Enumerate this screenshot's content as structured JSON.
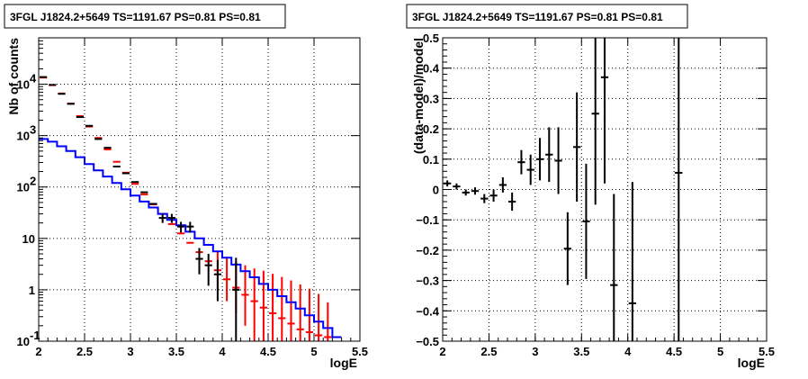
{
  "chart_data": [
    {
      "type": "histogram",
      "title": "3FGL J1824.2+5649 TS=1191.67 PS=0.81 PS=0.81",
      "xlabel": "logE",
      "ylabel": "Nb of counts",
      "xlim": [
        2,
        5.5
      ],
      "ylim": [
        0.1,
        80000
      ],
      "y_scale": "log",
      "grid": true,
      "x_ticks": [
        {
          "v": 2,
          "label": "2"
        },
        {
          "v": 2.5,
          "label": "2.5"
        },
        {
          "v": 3,
          "label": "3"
        },
        {
          "v": 3.5,
          "label": "3.5"
        },
        {
          "v": 4,
          "label": "4"
        },
        {
          "v": 4.5,
          "label": "4.5"
        },
        {
          "v": 5,
          "label": "5"
        },
        {
          "v": 5.5,
          "label": "5.5"
        }
      ],
      "y_ticks": [
        {
          "v": 0.1,
          "base": "10",
          "exp": "-1"
        },
        {
          "v": 1,
          "base": "1",
          "exp": ""
        },
        {
          "v": 10,
          "base": "10",
          "exp": ""
        },
        {
          "v": 100,
          "base": "10",
          "exp": "2"
        },
        {
          "v": 1000,
          "base": "10",
          "exp": "3"
        },
        {
          "v": 10000,
          "base": "10",
          "exp": "4"
        }
      ],
      "colors": {
        "data": "#000000",
        "model_total": "#ff0000",
        "model_source": "#0000ff"
      },
      "bin_width": 0.1,
      "series": [
        {
          "key": "model_total",
          "x": [
            2.05,
            2.15,
            2.25,
            2.35,
            2.45,
            2.55,
            2.65,
            2.75,
            2.85,
            2.95,
            3.05,
            3.15,
            3.25,
            3.35,
            3.45,
            3.55,
            3.65,
            3.75,
            3.85,
            3.95,
            4.05,
            4.15,
            4.25,
            4.35,
            4.45,
            4.55,
            4.65,
            4.75,
            4.85,
            4.95,
            5.05,
            5.15
          ],
          "y": [
            13500,
            9600,
            6600,
            4200,
            2400,
            1500,
            900,
            540,
            310,
            190,
            115,
            72,
            46,
            30,
            19,
            12.5,
            8.2,
            5.4,
            3.6,
            2.4,
            1.6,
            1.1,
            0.8,
            0.6,
            0.45,
            0.35,
            0.28,
            0.22,
            0.17,
            0.15,
            0.13,
            0.12
          ],
          "err_lo": [
            0,
            0,
            0,
            0,
            0,
            0,
            0,
            0,
            0,
            0,
            0,
            0,
            0,
            0,
            0,
            0,
            0,
            0,
            0,
            1.4,
            1.0,
            0.75,
            0.6,
            0.5,
            0.4,
            0.32,
            0.26,
            0.21,
            0.17,
            0.15,
            0.13,
            0.12
          ],
          "err_hi": [
            0,
            0,
            0,
            0,
            0,
            0,
            0,
            0,
            0,
            0,
            0,
            0,
            0,
            0,
            0,
            0,
            0,
            0,
            0,
            3.2,
            2.8,
            2.4,
            2.2,
            2.0,
            1.9,
            1.7,
            1.5,
            1.3,
            1.1,
            0.9,
            0.7,
            0.45
          ]
        },
        {
          "key": "model_source",
          "edges": [
            2.0,
            2.1,
            2.2,
            2.3,
            2.4,
            2.5,
            2.6,
            2.7,
            2.8,
            2.9,
            3.0,
            3.1,
            3.2,
            3.3,
            3.4,
            3.5,
            3.6,
            3.7,
            3.8,
            3.9,
            4.0,
            4.1,
            4.2,
            4.3,
            4.4,
            4.5,
            4.6,
            4.7,
            4.8,
            4.9,
            5.0,
            5.1,
            5.2,
            5.3
          ],
          "y": [
            860,
            760,
            620,
            500,
            380,
            280,
            210,
            160,
            120,
            90,
            68,
            52,
            40,
            30,
            23,
            18,
            13.5,
            10,
            7.5,
            5.6,
            4.2,
            3.1,
            2.3,
            1.75,
            1.3,
            1.0,
            0.75,
            0.57,
            0.43,
            0.32,
            0.24,
            0.18,
            0.12
          ]
        },
        {
          "key": "data",
          "x": [
            2.05,
            2.15,
            2.25,
            2.35,
            2.45,
            2.55,
            2.65,
            2.75,
            2.85,
            2.95,
            3.05,
            3.15,
            3.25,
            3.35,
            3.45,
            3.55,
            3.65,
            3.75,
            3.85,
            3.95,
            4.15
          ],
          "y": [
            13800,
            9700,
            6500,
            4150,
            2300,
            1550,
            860,
            580,
            250,
            185,
            125,
            79,
            47,
            25,
            25,
            17,
            17,
            4,
            3,
            2,
            1
          ],
          "err_lo": [
            0,
            0,
            0,
            0,
            0,
            0,
            0,
            0,
            0,
            0,
            0,
            0,
            0,
            5,
            5,
            4,
            4,
            2,
            1.8,
            1.4,
            0.9
          ],
          "err_hi": [
            0,
            0,
            0,
            0,
            0,
            0,
            0,
            0,
            0,
            0,
            0,
            0,
            0,
            5,
            5,
            4,
            4,
            2.5,
            2,
            1.8,
            3.2
          ]
        }
      ]
    },
    {
      "type": "scatter",
      "title": "3FGL J1824.2+5649 TS=1191.67 PS=0.81 PS=0.81",
      "xlabel": "logE",
      "ylabel": "(data-model)/model",
      "xlim": [
        2,
        5.5
      ],
      "ylim": [
        -0.5,
        0.5
      ],
      "grid": true,
      "x_ticks": [
        {
          "v": 2,
          "label": "2"
        },
        {
          "v": 2.5,
          "label": "2.5"
        },
        {
          "v": 3,
          "label": "3"
        },
        {
          "v": 3.5,
          "label": "3.5"
        },
        {
          "v": 4,
          "label": "4"
        },
        {
          "v": 4.5,
          "label": "4.5"
        },
        {
          "v": 5,
          "label": "5"
        },
        {
          "v": 5.5,
          "label": "5.5"
        }
      ],
      "y_ticks": [
        {
          "v": -0.5,
          "label": "−0.5"
        },
        {
          "v": -0.4,
          "label": "−0.4"
        },
        {
          "v": -0.3,
          "label": "−0.3"
        },
        {
          "v": -0.2,
          "label": "−0.2"
        },
        {
          "v": -0.1,
          "label": "−0.1"
        },
        {
          "v": 0,
          "label": "0"
        },
        {
          "v": 0.1,
          "label": "0.1"
        },
        {
          "v": 0.2,
          "label": "0.2"
        },
        {
          "v": 0.3,
          "label": "0.3"
        },
        {
          "v": 0.4,
          "label": "0.4"
        },
        {
          "v": 0.5,
          "label": "0.5"
        }
      ],
      "colors": {
        "data": "#000000"
      },
      "bin_width": 0.1,
      "series": [
        {
          "key": "residual",
          "x": [
            2.05,
            2.15,
            2.25,
            2.35,
            2.45,
            2.55,
            2.65,
            2.75,
            2.85,
            2.95,
            3.05,
            3.15,
            3.25,
            3.35,
            3.45,
            3.55,
            3.65,
            3.75,
            3.85,
            4.05,
            4.55
          ],
          "y": [
            0.02,
            0.01,
            -0.01,
            -0.005,
            -0.03,
            -0.02,
            0.015,
            -0.04,
            0.09,
            0.065,
            0.1,
            0.115,
            0.095,
            -0.195,
            0.14,
            -0.105,
            0.25,
            0.37,
            -0.315,
            -0.375,
            0.055
          ],
          "err": [
            0.01,
            0.01,
            0.01,
            0.012,
            0.015,
            0.02,
            0.025,
            0.03,
            0.04,
            0.05,
            0.07,
            0.09,
            0.11,
            0.12,
            0.18,
            0.19,
            0.3,
            0.35,
            0.3,
            0.4,
            0.6
          ]
        }
      ]
    }
  ]
}
